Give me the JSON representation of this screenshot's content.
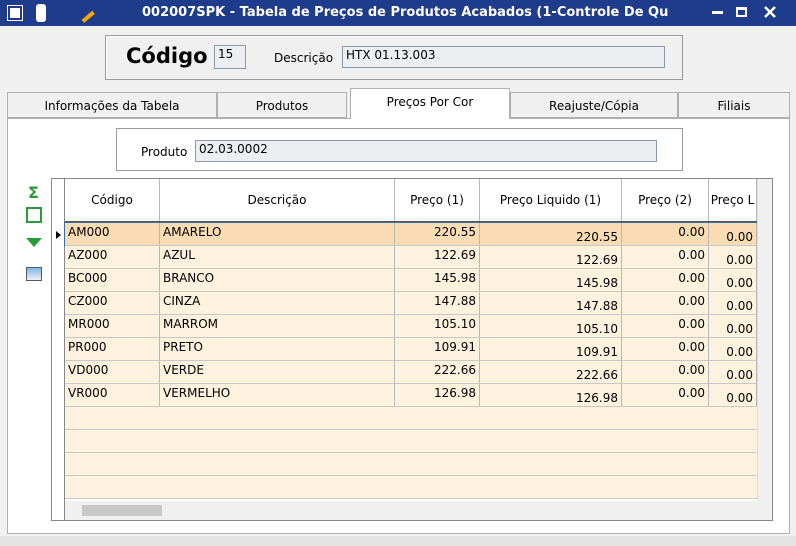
{
  "window": {
    "title": "002007SPK - Tabela de Preços de Produtos Acabados (1-Controle De Qu"
  },
  "header": {
    "code_label": "Código",
    "code_value": "15",
    "description_label": "Descrição",
    "description_value": "HTX 01.13.003"
  },
  "tabs": [
    "Informações da Tabela",
    "Produtos",
    "Preços Por Cor",
    "Reajuste/Cópia",
    "Filiais"
  ],
  "product": {
    "label": "Produto",
    "value": "02.03.0002"
  },
  "table": {
    "columns": [
      "Código",
      "Descrição",
      "Preço (1)",
      "Preço Liquido (1)",
      "Preço (2)",
      "Preço L"
    ],
    "rows": [
      [
        "AM000",
        "AMARELO",
        "220.55",
        "220.55",
        "0.00",
        "0.00"
      ],
      [
        "AZ000",
        "AZUL",
        "122.69",
        "122.69",
        "0.00",
        "0.00"
      ],
      [
        "BC000",
        "BRANCO",
        "145.98",
        "145.98",
        "0.00",
        "0.00"
      ],
      [
        "CZ000",
        "CINZA",
        "147.88",
        "147.88",
        "0.00",
        "0.00"
      ],
      [
        "MR000",
        "MARROM",
        "105.10",
        "105.10",
        "0.00",
        "0.00"
      ],
      [
        "PR000",
        "PRETO",
        "109.91",
        "109.91",
        "0.00",
        "0.00"
      ],
      [
        "VD000",
        "VERDE",
        "222.66",
        "222.66",
        "0.00",
        "0.00"
      ],
      [
        "VR000",
        "VERMELHO",
        "126.98",
        "126.98",
        "0.00",
        "0.00"
      ]
    ]
  }
}
